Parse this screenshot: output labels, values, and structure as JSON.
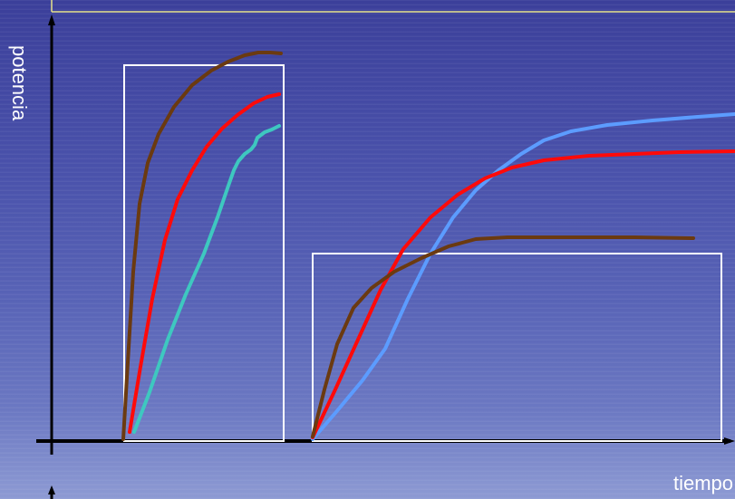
{
  "axes": {
    "y_label": "potencia",
    "x_label": "tiempo"
  },
  "colors": {
    "background": "#4a52ab",
    "axis": "#000000",
    "box": "#ffffff",
    "header_line": "#e6e28a",
    "curve_brown": "#6b3a10",
    "curve_red": "#ff0a0a",
    "curve_turquoise": "#3ec8c0",
    "curve_blue": "#5c9cff"
  },
  "groups": [
    {
      "name": "left-group",
      "curves": [
        "brown",
        "red",
        "turquoise"
      ]
    },
    {
      "name": "right-group",
      "curves": [
        "blue",
        "red",
        "brown"
      ]
    }
  ]
}
